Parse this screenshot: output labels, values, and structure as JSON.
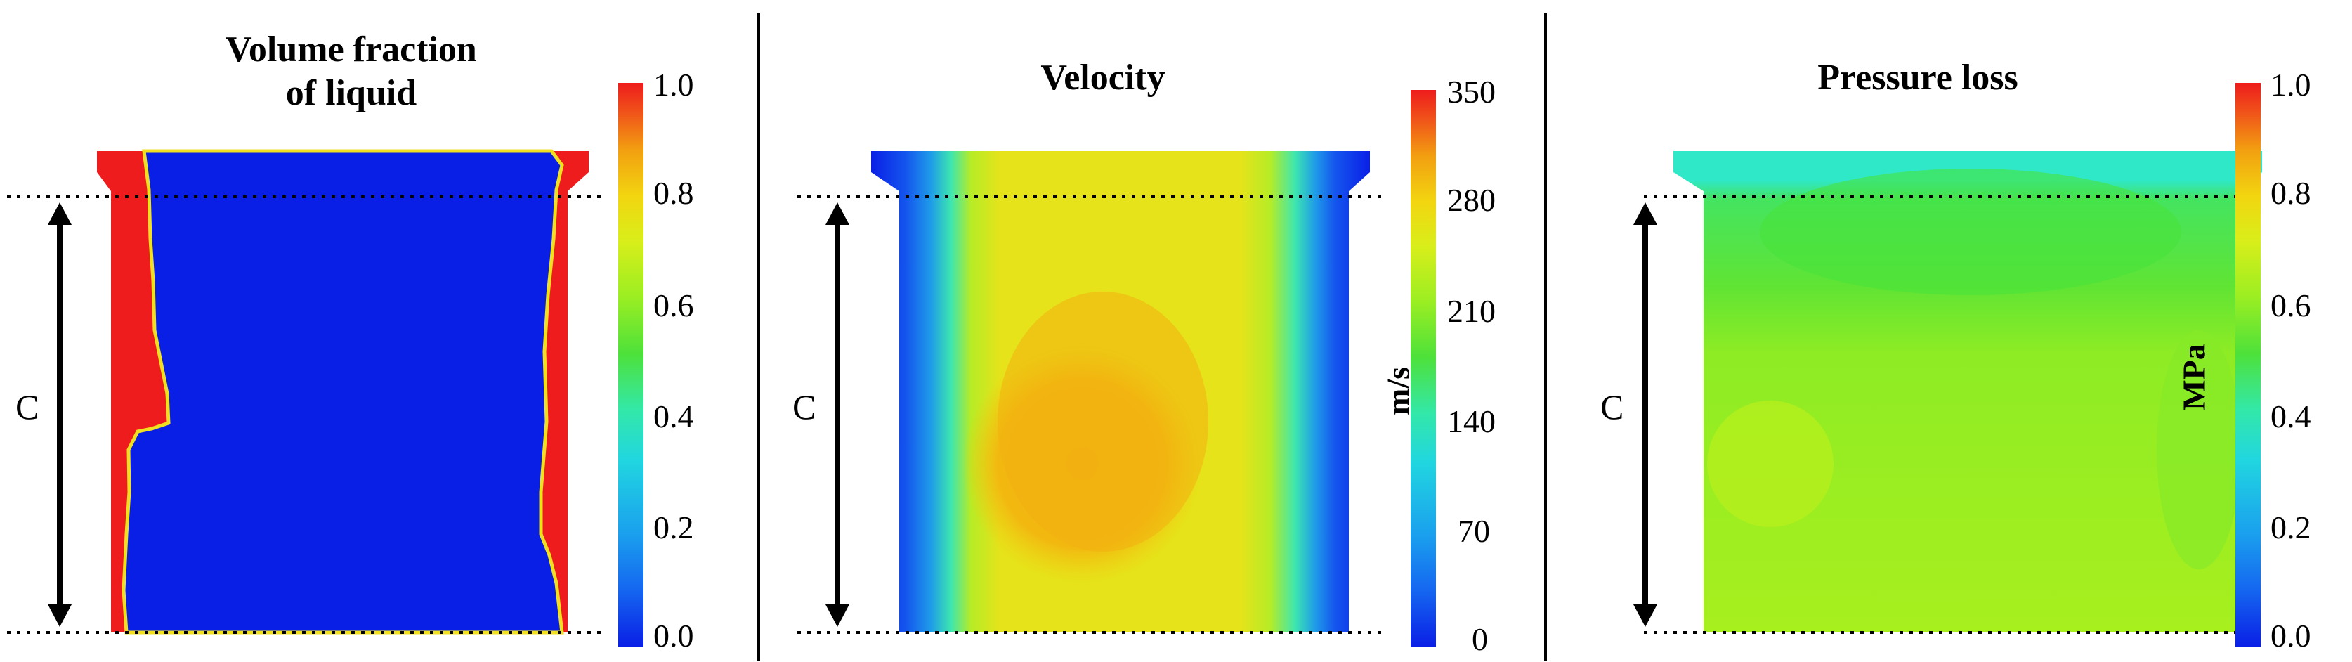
{
  "panels": [
    {
      "title": "Volume fraction\nof liquid",
      "unit": "",
      "ticks": [
        "1.0",
        "0.8",
        "0.6",
        "0.4",
        "0.2",
        "0.0"
      ],
      "dimension_label": "C"
    },
    {
      "title": "Velocity",
      "unit": "m/s",
      "ticks": [
        "350",
        "280",
        "210",
        "140",
        "70",
        "0"
      ],
      "dimension_label": "C"
    },
    {
      "title": "Pressure loss",
      "unit": "MPa",
      "ticks": [
        "1.0",
        "0.8",
        "0.6",
        "0.4",
        "0.2",
        "0.0"
      ],
      "dimension_label": "C"
    }
  ],
  "colors": {
    "blue": "#0a1fe6",
    "red": "#ee1c1c",
    "yellow": "#e6e31a",
    "orange": "#f2b110",
    "green": "#4ee13a",
    "lime": "#a8ef1e",
    "cyan": "#2fe8c8"
  }
}
